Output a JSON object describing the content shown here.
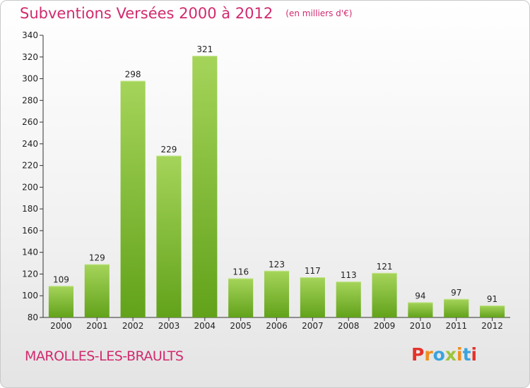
{
  "title": "Subventions Versées 2000 à 2012",
  "unit_note": "(en milliers d'€)",
  "commune": "MAROLLES-LES-BRAULTS",
  "logo": {
    "letters": [
      "P",
      "r",
      "o",
      "x",
      "i",
      "t",
      "i"
    ],
    "colors": [
      "#e4322b",
      "#f18e1c",
      "#3aa3dd",
      "#9cc43b",
      "#f18e1c",
      "#3aa3dd",
      "#e4322b"
    ]
  },
  "colors": {
    "accent": "#d12a6e",
    "bar_top": "#a5d45a",
    "bar_bottom": "#62a21a"
  },
  "chart_data": {
    "type": "bar",
    "categories": [
      "2000",
      "2001",
      "2002",
      "2003",
      "2004",
      "2005",
      "2006",
      "2007",
      "2008",
      "2009",
      "2010",
      "2011",
      "2012"
    ],
    "values": [
      109,
      129,
      298,
      229,
      321,
      116,
      123,
      117,
      113,
      121,
      94,
      97,
      91
    ],
    "ylim": [
      80,
      340
    ],
    "yticks": [
      80,
      100,
      120,
      140,
      160,
      180,
      200,
      220,
      240,
      260,
      280,
      300,
      320,
      340
    ],
    "grid": false
  }
}
